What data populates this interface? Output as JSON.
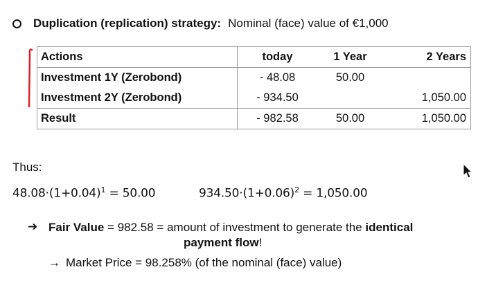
{
  "heading": {
    "bold": "Duplication (replication) strategy:",
    "rest": "Nominal (face) value of €1,000"
  },
  "table": {
    "headers": [
      "Actions",
      "today",
      "1 Year",
      "2 Years"
    ],
    "rows": [
      [
        "Investment 1Y (Zerobond)",
        "- 48.08",
        "50.00",
        ""
      ],
      [
        "Investment 2Y (Zerobond)",
        "- 934.50",
        "",
        "1,050.00"
      ]
    ],
    "result": [
      "Result",
      "- 982.58",
      "50.00",
      "1,050.00"
    ]
  },
  "thus_label": "Thus:",
  "equations": {
    "eq1": {
      "base": "48.08",
      "factor": "(1+0.04)",
      "exp": "1",
      "result": "= 50.00"
    },
    "eq2": {
      "base": "934.50",
      "factor": "(1+0.06)",
      "exp": "2",
      "result": "= 1,050.00"
    }
  },
  "fair_value": {
    "label": "Fair Value",
    "text1": " = 982.58 = amount of investment to generate the ",
    "emph1": "identical",
    "emph2": "payment flow",
    "tail": "!"
  },
  "market_price": {
    "text": "Market Price = 98.258% (of the nominal (face) value)"
  },
  "colors": {
    "pen_mark": "#d8232a",
    "border": "#9a9a9a"
  }
}
